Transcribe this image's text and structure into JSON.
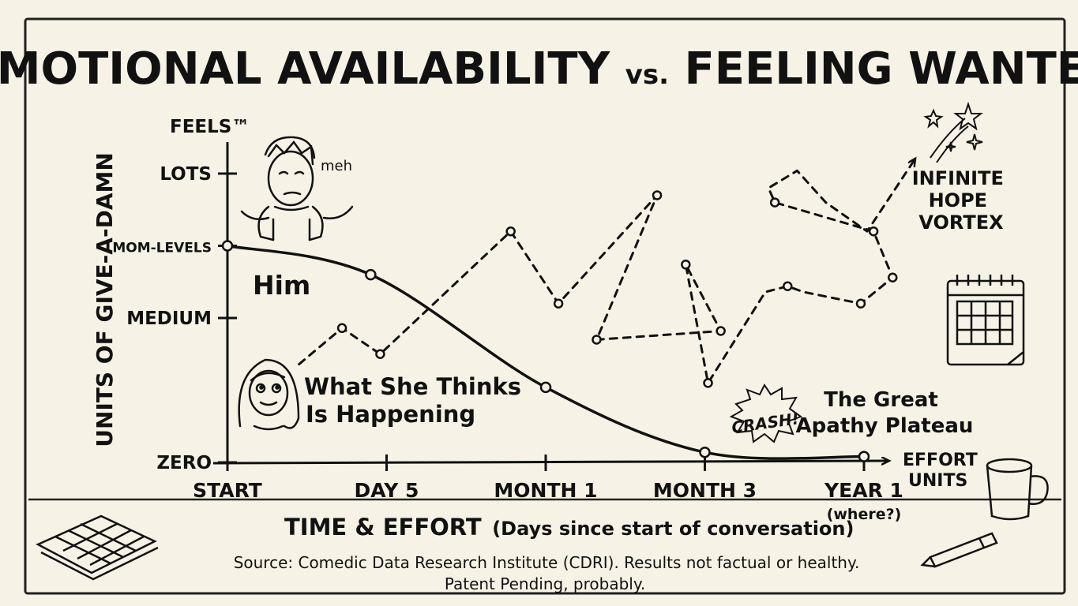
{
  "title_left": "EMOTIONAL AVAILABILITY",
  "title_vs": "vs.",
  "title_right": "FEELING WANTED",
  "y_top_label": "FEELS™",
  "ylabel": "UNITS OF GIVE-A-DAMN",
  "xlabel_main": "TIME & EFFORT",
  "xlabel_sub": "(Days since start of conversation)",
  "x_end_label": [
    "EFFORT",
    "UNITS"
  ],
  "year1_note": "(where?)",
  "chart_data": {
    "type": "line",
    "title": "EMOTIONAL AVAILABILITY vs. FEELING WANTED",
    "x_ticks": [
      {
        "label": "START",
        "pos": 0
      },
      {
        "label": "DAY 5",
        "pos": 1
      },
      {
        "label": "MONTH 1",
        "pos": 2
      },
      {
        "label": "MONTH 3",
        "pos": 3
      },
      {
        "label": "YEAR 1",
        "pos": 4
      }
    ],
    "y_ticks": [
      {
        "label": "ZERO",
        "value": 0
      },
      {
        "label": "MEDIUM",
        "value": 1
      },
      {
        "label": "MOM-LEVELS",
        "value": 1.5
      },
      {
        "label": "LOTS",
        "value": 2
      }
    ],
    "xlim": [
      0,
      4.5
    ],
    "ylim": [
      0,
      2.2
    ],
    "series": [
      {
        "name": "Him",
        "style": "solid",
        "points": [
          [
            0,
            1.5
          ],
          [
            0.9,
            1.3
          ],
          [
            2.0,
            0.52
          ],
          [
            3.0,
            0.07
          ],
          [
            4.0,
            0.04
          ]
        ]
      },
      {
        "name": "What She Thinks Is Happening",
        "style": "dashed",
        "points": [
          [
            0.45,
            0.68
          ],
          [
            0.72,
            0.93
          ],
          [
            0.96,
            0.75
          ],
          [
            1.78,
            1.6
          ],
          [
            2.08,
            1.1
          ],
          [
            2.7,
            1.85
          ],
          [
            2.32,
            0.85
          ],
          [
            3.1,
            0.91
          ],
          [
            2.88,
            1.37
          ],
          [
            3.02,
            0.55
          ],
          [
            3.38,
            1.18
          ],
          [
            3.52,
            1.22
          ],
          [
            3.62,
            1.18
          ],
          [
            3.98,
            1.1
          ],
          [
            4.18,
            1.28
          ],
          [
            4.06,
            1.6
          ],
          [
            3.44,
            1.8
          ],
          [
            3.4,
            1.9
          ],
          [
            3.58,
            2.02
          ],
          [
            3.76,
            1.8
          ],
          [
            4.02,
            1.6
          ],
          [
            4.32,
            2.1
          ]
        ]
      }
    ],
    "annotations": [
      {
        "text": "meh"
      },
      {
        "text": "Him"
      },
      {
        "text": "What She Thinks Is Happening"
      },
      {
        "text": "CRASH!"
      },
      {
        "text": "The Great Apathy Plateau"
      },
      {
        "text": "INFINITE HOPE VORTEX"
      }
    ],
    "grid": false
  },
  "source_line1": "Source: Comedic Data Research Institute (CDRI). Results not factual or healthy.",
  "source_line2": "Patent Pending, probably."
}
